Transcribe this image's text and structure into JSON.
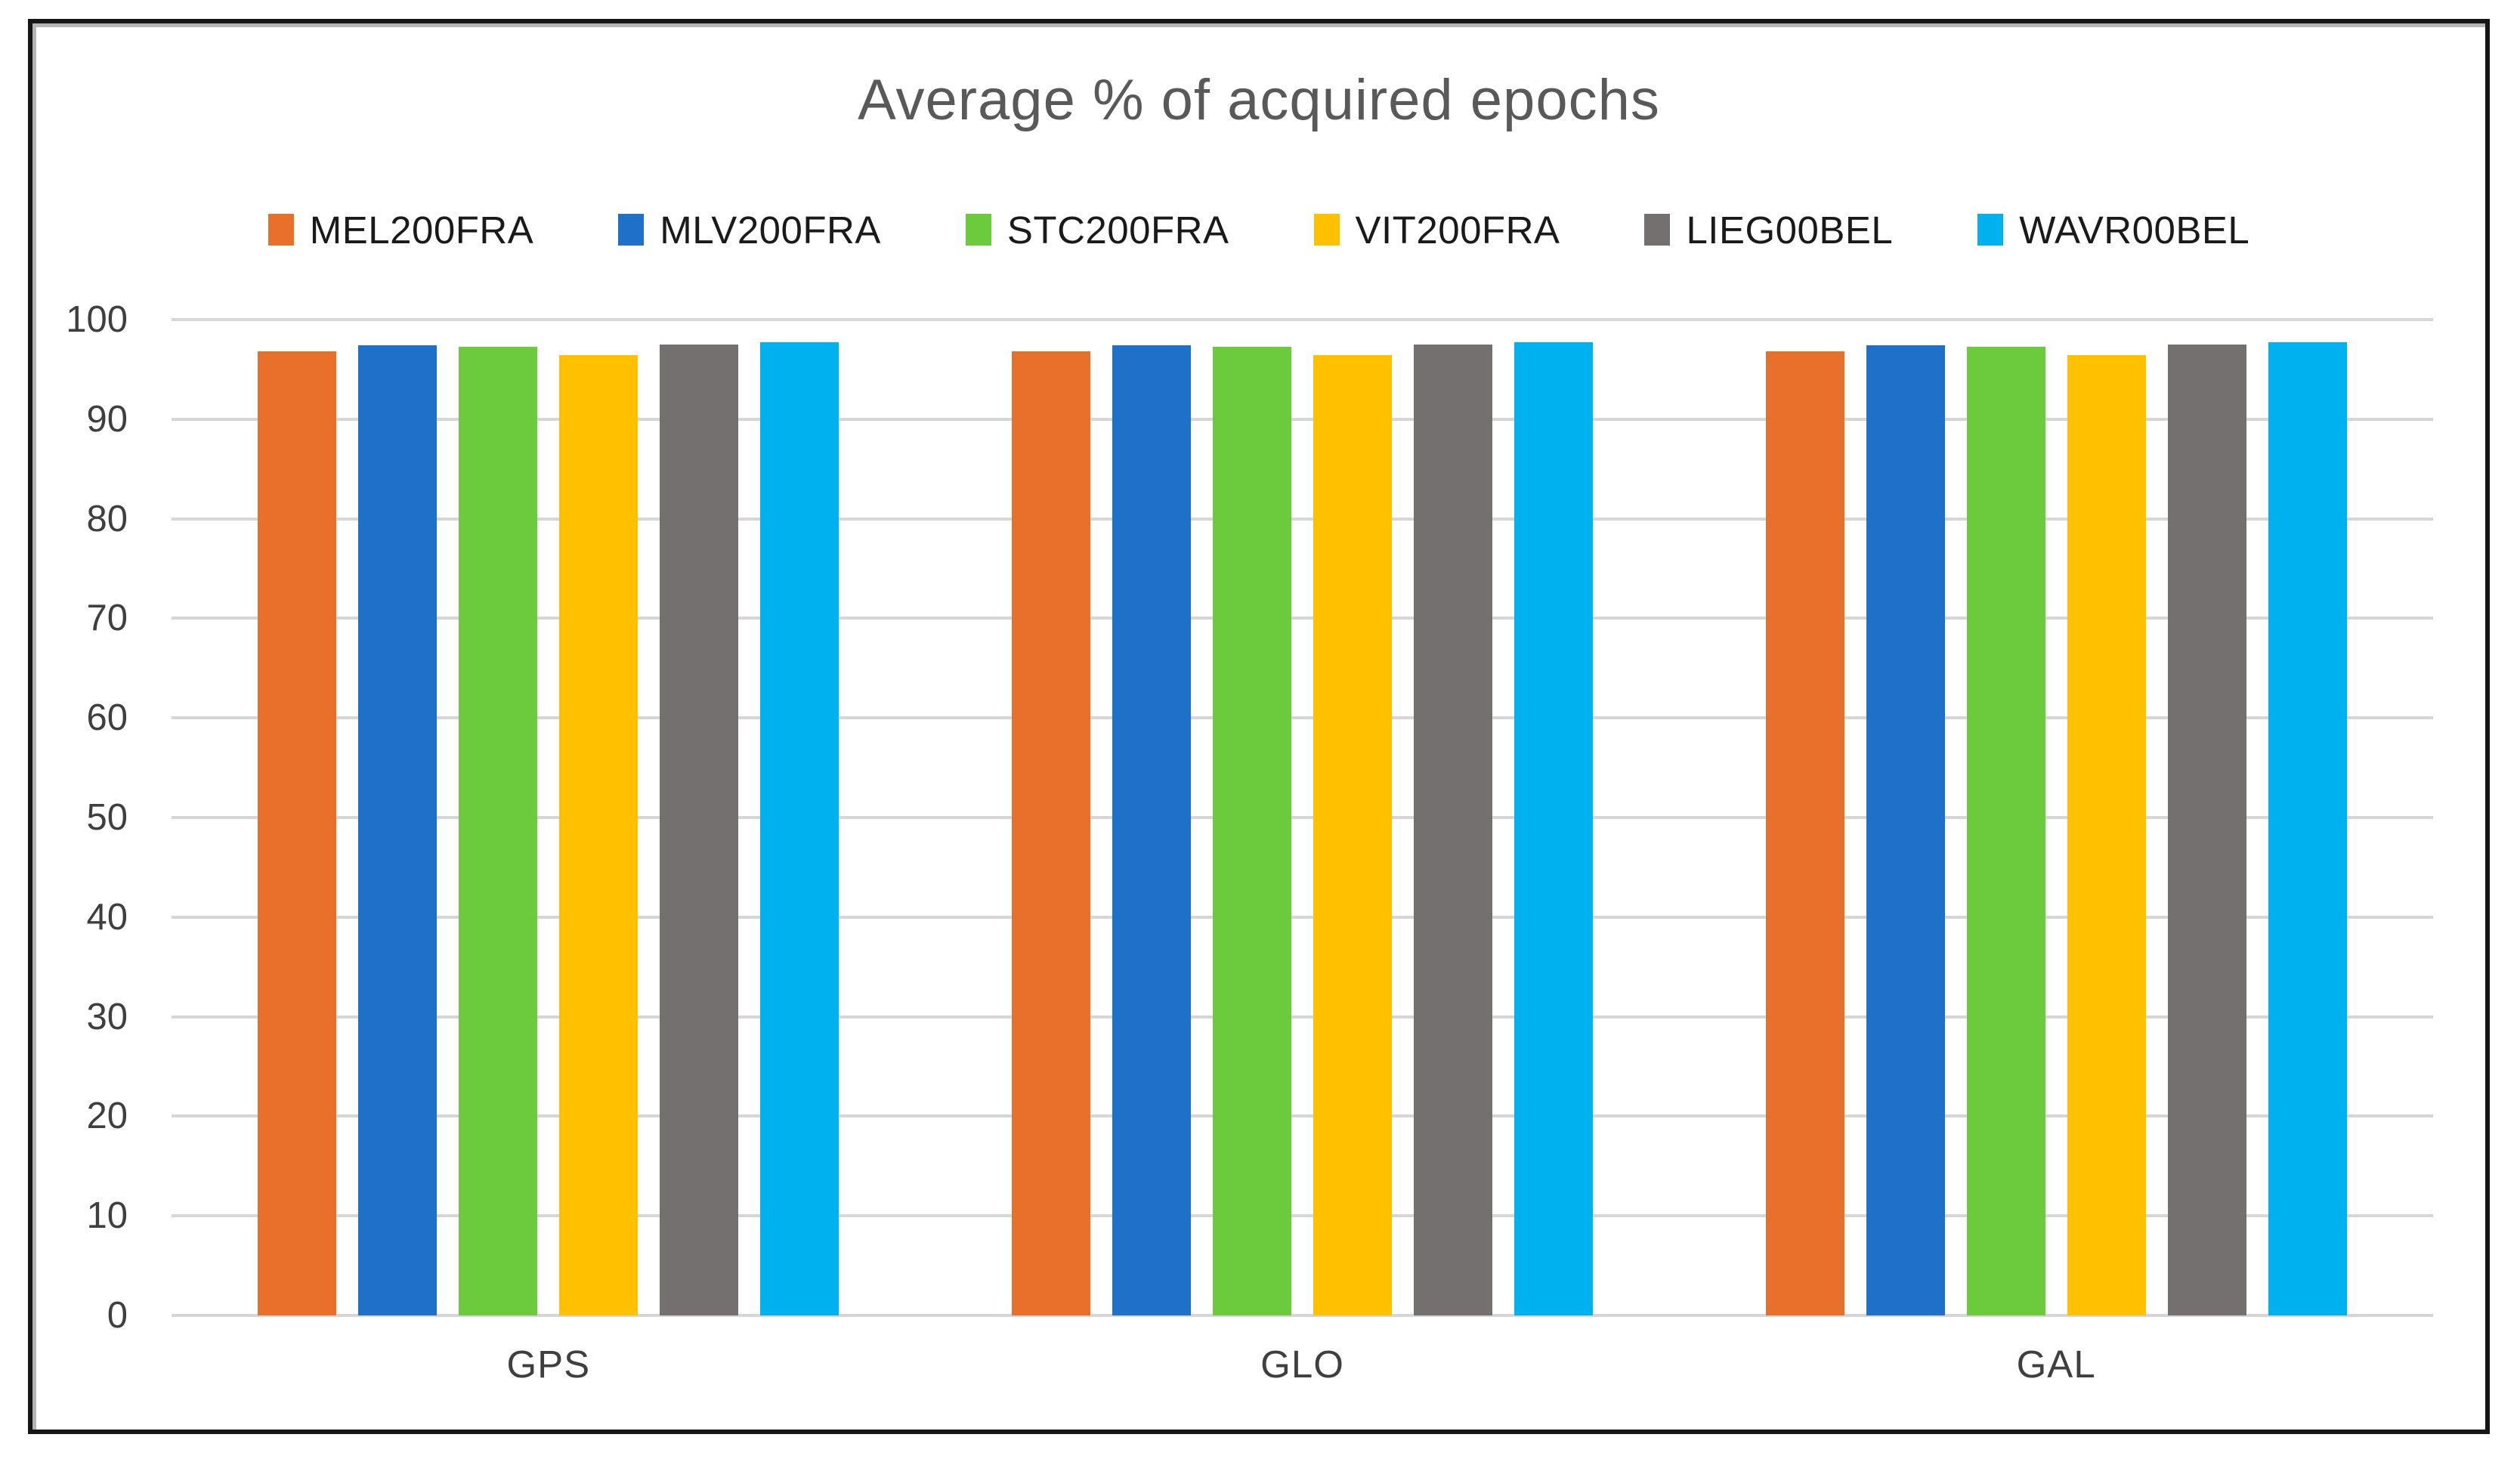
{
  "frame": {
    "background": "#FFFFFF",
    "border_color": "#161616"
  },
  "chart_data": {
    "type": "bar",
    "title": "Average % of acquired epochs",
    "categories": [
      "GPS",
      "GLO",
      "GAL"
    ],
    "series": [
      {
        "name": "MEL200FRA",
        "color": "#E8702B",
        "values": [
          96.8,
          96.8,
          96.8
        ]
      },
      {
        "name": "MLV200FRA",
        "color": "#1F70C8",
        "values": [
          97.4,
          97.4,
          97.4
        ]
      },
      {
        "name": "STC200FRA",
        "color": "#6BCB3D",
        "values": [
          97.3,
          97.3,
          97.3
        ]
      },
      {
        "name": "VIT200FRA",
        "color": "#FFC000",
        "values": [
          96.4,
          96.4,
          96.4
        ]
      },
      {
        "name": "LIEG00BEL",
        "color": "#757070",
        "values": [
          97.5,
          97.5,
          97.5
        ]
      },
      {
        "name": "WAVR00BEL",
        "color": "#00B1F0",
        "values": [
          97.7,
          97.7,
          97.7
        ]
      }
    ],
    "ylim": [
      0,
      100
    ],
    "yticks": [
      0,
      10,
      20,
      30,
      40,
      50,
      60,
      70,
      80,
      90,
      100
    ],
    "grid": true,
    "legend_position": "top",
    "xlabel": "",
    "ylabel": ""
  },
  "styles": {
    "title_color": "#595959",
    "tick_label_color": "#3F3F3F",
    "category_label_color": "#3F3F3F",
    "legend_text_color": "#1A1A1A",
    "gridline_color": "#D6D6D6",
    "plot_background": "#FFFFFF"
  }
}
